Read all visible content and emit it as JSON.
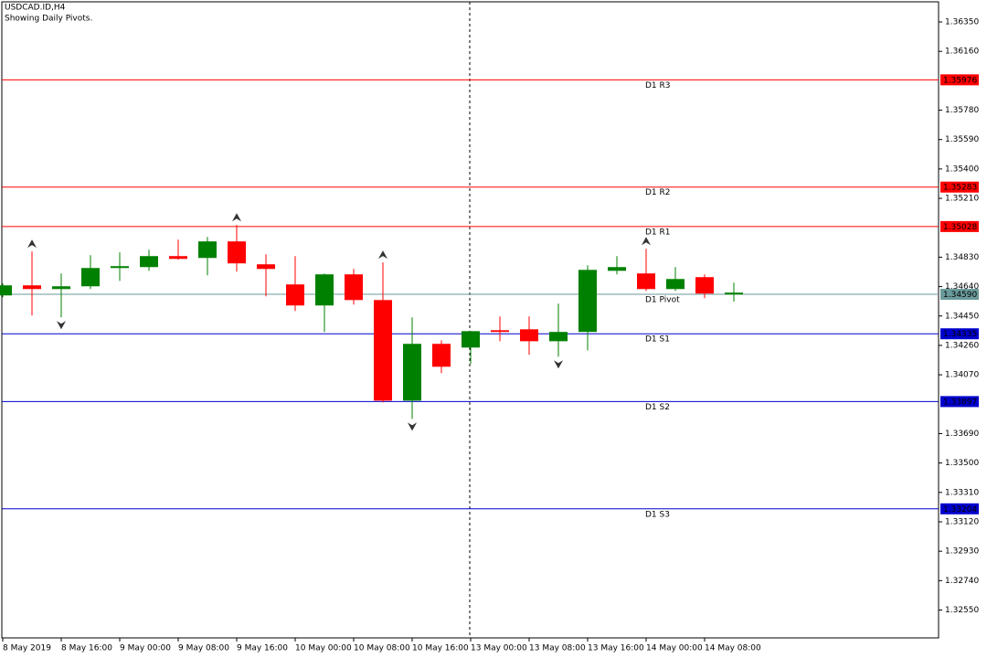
{
  "chart_data": {
    "type": "candlestick",
    "title": "USDCAD.ID,H4",
    "subtitle": "Showing Daily Pivots.",
    "categories": [
      "8 May 2019",
      null,
      "8 May 16:00",
      null,
      "9 May 00:00",
      null,
      "9 May 08:00",
      null,
      "9 May 16:00",
      null,
      "10 May 00:00",
      null,
      "10 May 08:00",
      null,
      "10 May 16:00",
      null,
      "13 May 00:00",
      null,
      "13 May 08:00",
      null,
      "13 May 16:00",
      null,
      "14 May 00:00",
      null,
      "14 May 08:00",
      null
    ],
    "open": [
      1.34583,
      1.34648,
      1.34624,
      1.34642,
      1.3476,
      1.34766,
      1.34837,
      1.34825,
      1.34932,
      1.34784,
      1.34654,
      1.34518,
      1.34719,
      1.34553,
      1.33903,
      1.3427,
      1.34246,
      1.34358,
      1.34364,
      1.34287,
      1.34347,
      1.34742,
      1.34725,
      1.34624,
      1.34701,
      1.34589
    ],
    "high": [
      1.3466,
      1.34867,
      1.34725,
      1.34843,
      1.34861,
      1.34878,
      1.34943,
      1.34961,
      1.35038,
      1.34849,
      1.34837,
      1.34725,
      1.34754,
      1.34796,
      1.34441,
      1.34293,
      1.34352,
      1.34447,
      1.34447,
      1.3453,
      1.34778,
      1.34837,
      1.34884,
      1.34766,
      1.34719,
      1.34666
    ],
    "low": [
      1.34571,
      1.34453,
      1.34441,
      1.34624,
      1.34677,
      1.34742,
      1.34813,
      1.34713,
      1.34737,
      1.34577,
      1.34482,
      1.34347,
      1.34524,
      1.33891,
      1.33785,
      1.34081,
      1.3414,
      1.34287,
      1.34199,
      1.34187,
      1.34228,
      1.34719,
      1.34612,
      1.34612,
      1.34565,
      1.34542
    ],
    "close": [
      1.34648,
      1.34624,
      1.34642,
      1.3476,
      1.34772,
      1.34837,
      1.34819,
      1.34932,
      1.3479,
      1.34754,
      1.34518,
      1.34719,
      1.34553,
      1.33903,
      1.3427,
      1.34122,
      1.34352,
      1.34347,
      1.34287,
      1.34347,
      1.34748,
      1.34766,
      1.34624,
      1.34689,
      1.34595,
      1.34601
    ],
    "up_color": "#008000",
    "down_color": "#ff0000",
    "fractals_up": [
      null,
      1.34867,
      null,
      null,
      null,
      null,
      null,
      null,
      1.35038,
      null,
      null,
      null,
      null,
      1.34796,
      null,
      null,
      null,
      null,
      null,
      null,
      null,
      null,
      1.34884,
      null,
      null,
      null
    ],
    "fractals_down": [
      null,
      null,
      1.34441,
      null,
      null,
      null,
      null,
      null,
      null,
      null,
      null,
      null,
      null,
      null,
      1.33785,
      null,
      null,
      null,
      null,
      1.34187,
      null,
      null,
      null,
      null,
      null,
      null
    ],
    "pivots": [
      {
        "name": "D1 R3",
        "value": 1.35976,
        "color": "#ff0000"
      },
      {
        "name": "D1 R2",
        "value": 1.35283,
        "color": "#ff0000"
      },
      {
        "name": "D1 R1",
        "value": 1.35028,
        "color": "#ff0000"
      },
      {
        "name": "D1 Pivot",
        "value": 1.3459,
        "value_label": "1.34590",
        "color": "#6a9a9a"
      },
      {
        "name": "D1 S1",
        "value": 1.34335,
        "color": "#0000cd"
      },
      {
        "name": "D1 S2",
        "value": 1.33897,
        "color": "#0000cd"
      },
      {
        "name": "D1 S3",
        "value": 1.33204,
        "color": "#0000cd"
      }
    ],
    "ylim": [
      1.3237,
      1.3648
    ],
    "yticks": [
      {
        "value": 1.3635,
        "label": "1.36350"
      },
      {
        "value": 1.3616,
        "label": "1.36160"
      },
      {
        "value": 1.3578,
        "label": "1.35780"
      },
      {
        "value": 1.3559,
        "label": "1.35590"
      },
      {
        "value": 1.354,
        "label": "1.35400"
      },
      {
        "value": 1.3521,
        "label": "1.35210"
      },
      {
        "value": 1.3483,
        "label": "1.34830"
      },
      {
        "value": 1.3464,
        "label": "1.34640"
      },
      {
        "value": 1.3445,
        "label": "1.34450"
      },
      {
        "value": 1.3426,
        "label": "1.34260"
      },
      {
        "value": 1.3407,
        "label": "1.34070"
      },
      {
        "value": 1.3369,
        "label": "1.33690"
      },
      {
        "value": 1.335,
        "label": "1.33500"
      },
      {
        "value": 1.3331,
        "label": "1.33310"
      },
      {
        "value": 1.3312,
        "label": "1.33120"
      },
      {
        "value": 1.3293,
        "label": "1.32930"
      },
      {
        "value": 1.3274,
        "label": "1.32740"
      },
      {
        "value": 1.3255,
        "label": "1.32550"
      }
    ]
  }
}
